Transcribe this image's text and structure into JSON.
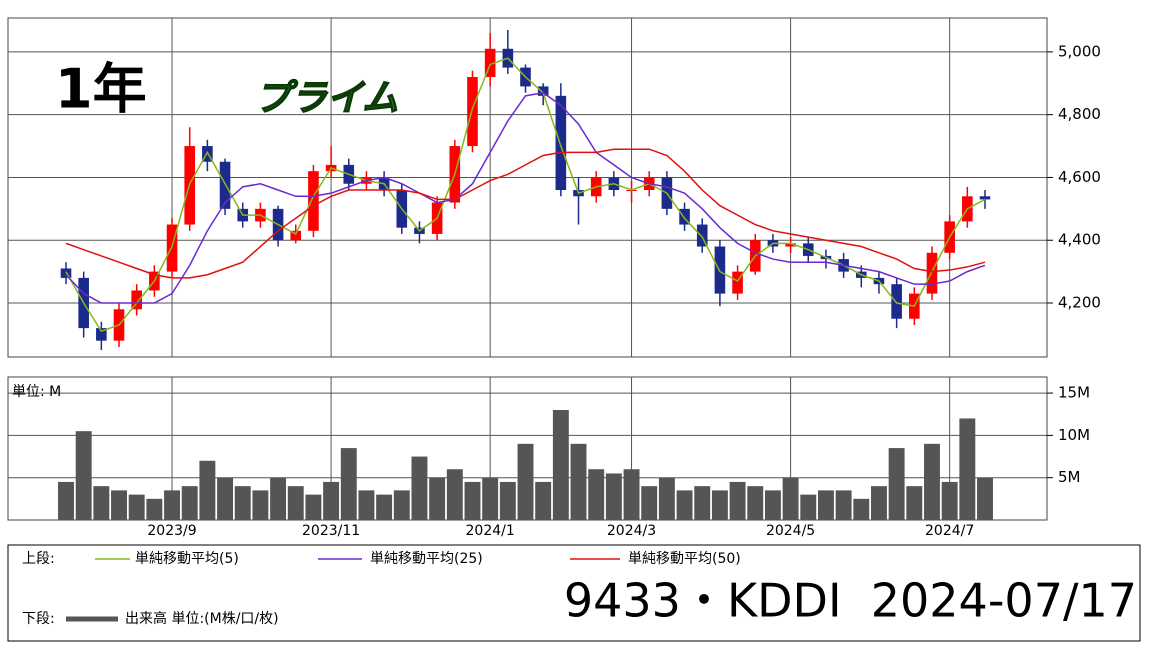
{
  "header": {
    "period": "1年",
    "market": "プライム"
  },
  "chart_data": [
    {
      "type": "candlestick",
      "up_color": "#ff0000",
      "down_color": "#1c2a8c",
      "ylim": [
        4028,
        5108
      ],
      "yticks": [
        {
          "value": 4200,
          "label": "4,200"
        },
        {
          "value": 4400,
          "label": "4,400"
        },
        {
          "value": 4600,
          "label": "4,600"
        },
        {
          "value": 4800,
          "label": "4,800"
        },
        {
          "value": 5000,
          "label": "5,000"
        }
      ],
      "grid": true,
      "legend_prefix": "上段:",
      "open": [
        4310,
        4280,
        4120,
        4080,
        4180,
        4240,
        4300,
        4450,
        4700,
        4650,
        4500,
        4460,
        4500,
        4400,
        4430,
        4620,
        4640,
        4580,
        4600,
        4560,
        4440,
        4420,
        4520,
        4700,
        4920,
        5010,
        4950,
        4890,
        4860,
        4560,
        4540,
        4600,
        4560,
        4560,
        4600,
        4500,
        4450,
        4380,
        4230,
        4300,
        4400,
        4380,
        4390,
        4350,
        4340,
        4300,
        4280,
        4260,
        4150,
        4230,
        4360,
        4460,
        4540
      ],
      "high": [
        4330,
        4300,
        4140,
        4200,
        4260,
        4320,
        4470,
        4760,
        4720,
        4660,
        4520,
        4520,
        4510,
        4450,
        4640,
        4700,
        4660,
        4620,
        4620,
        4580,
        4460,
        4540,
        4720,
        4940,
        5060,
        5070,
        4960,
        4900,
        4900,
        4600,
        4620,
        4620,
        4590,
        4620,
        4620,
        4520,
        4470,
        4400,
        4320,
        4420,
        4420,
        4410,
        4410,
        4370,
        4360,
        4320,
        4300,
        4280,
        4250,
        4380,
        4480,
        4570,
        4560
      ],
      "low": [
        4260,
        4090,
        4050,
        4060,
        4160,
        4220,
        4280,
        4430,
        4620,
        4480,
        4440,
        4440,
        4380,
        4390,
        4410,
        4600,
        4560,
        4560,
        4540,
        4420,
        4390,
        4400,
        4500,
        4680,
        4890,
        4930,
        4870,
        4830,
        4540,
        4450,
        4520,
        4540,
        4520,
        4540,
        4480,
        4430,
        4360,
        4190,
        4210,
        4290,
        4360,
        4360,
        4330,
        4310,
        4280,
        4250,
        4230,
        4120,
        4130,
        4210,
        4340,
        4440,
        4500
      ],
      "close": [
        4280,
        4120,
        4080,
        4180,
        4240,
        4300,
        4450,
        4700,
        4650,
        4500,
        4460,
        4500,
        4400,
        4430,
        4620,
        4640,
        4580,
        4600,
        4560,
        4440,
        4420,
        4520,
        4700,
        4920,
        5010,
        4950,
        4890,
        4860,
        4560,
        4540,
        4600,
        4560,
        4560,
        4600,
        4500,
        4450,
        4380,
        4230,
        4300,
        4400,
        4380,
        4390,
        4350,
        4340,
        4300,
        4280,
        4260,
        4150,
        4230,
        4360,
        4460,
        4540,
        4530
      ],
      "series": [
        {
          "name": "単純移動平均(5)",
          "color": "#86b817",
          "values": [
            4300,
            4200,
            4110,
            4130,
            4200,
            4270,
            4380,
            4580,
            4680,
            4580,
            4480,
            4480,
            4450,
            4420,
            4540,
            4630,
            4610,
            4590,
            4580,
            4500,
            4430,
            4470,
            4610,
            4820,
            4960,
            4980,
            4920,
            4870,
            4700,
            4550,
            4570,
            4580,
            4560,
            4580,
            4550,
            4470,
            4410,
            4300,
            4270,
            4350,
            4390,
            4390,
            4370,
            4345,
            4320,
            4290,
            4270,
            4200,
            4190,
            4300,
            4410,
            4500,
            4530
          ]
        },
        {
          "name": "単純移動平均(25)",
          "color": "#6a2ad0",
          "values": [
            4290,
            4230,
            4200,
            4200,
            4200,
            4200,
            4230,
            4320,
            4430,
            4520,
            4570,
            4580,
            4560,
            4540,
            4540,
            4550,
            4570,
            4590,
            4600,
            4580,
            4550,
            4520,
            4530,
            4580,
            4680,
            4780,
            4860,
            4870,
            4830,
            4770,
            4680,
            4640,
            4600,
            4580,
            4570,
            4550,
            4500,
            4440,
            4390,
            4360,
            4340,
            4330,
            4330,
            4330,
            4320,
            4310,
            4300,
            4280,
            4260,
            4260,
            4270,
            4300,
            4320
          ]
        },
        {
          "name": "単純移動平均(50)",
          "color": "#e01010",
          "values": [
            4390,
            4370,
            4350,
            4330,
            4310,
            4290,
            4280,
            4280,
            4290,
            4310,
            4330,
            4380,
            4430,
            4470,
            4510,
            4540,
            4560,
            4560,
            4560,
            4560,
            4550,
            4530,
            4530,
            4560,
            4590,
            4610,
            4640,
            4670,
            4680,
            4680,
            4680,
            4690,
            4690,
            4690,
            4670,
            4620,
            4560,
            4510,
            4480,
            4450,
            4430,
            4420,
            4410,
            4400,
            4390,
            4380,
            4360,
            4340,
            4310,
            4300,
            4305,
            4315,
            4330
          ]
        }
      ]
    },
    {
      "type": "bar",
      "unit_label": "単位: M",
      "legend_prefix": "下段:",
      "name": "出来高 単位:(M株/口/枚)",
      "color": "#555555",
      "ylim": [
        0,
        16.9
      ],
      "yticks": [
        {
          "value": 5,
          "label": "5M"
        },
        {
          "value": 10,
          "label": "10M"
        },
        {
          "value": 15,
          "label": "15M"
        }
      ],
      "grid": true,
      "categories": [
        null,
        null,
        null,
        null,
        null,
        null,
        "2023/9",
        null,
        null,
        null,
        null,
        null,
        null,
        null,
        null,
        "2023/11",
        null,
        null,
        null,
        null,
        null,
        null,
        null,
        null,
        "2024/1",
        null,
        null,
        null,
        null,
        null,
        null,
        null,
        "2024/3",
        null,
        null,
        null,
        null,
        null,
        null,
        null,
        null,
        "2024/5",
        null,
        null,
        null,
        null,
        null,
        null,
        null,
        null,
        "2024/7",
        null,
        null
      ],
      "values": [
        4.5,
        10.5,
        4,
        3.5,
        3,
        2.5,
        3.5,
        4,
        7,
        5,
        4,
        3.5,
        5,
        4,
        3,
        4.5,
        8.5,
        3.5,
        3,
        3.5,
        7.5,
        5,
        6,
        4.5,
        5,
        4.5,
        9,
        4.5,
        13,
        9,
        6,
        5.5,
        6,
        4,
        5,
        3.5,
        4,
        3.5,
        4.5,
        4,
        3.5,
        5,
        3,
        3.5,
        3.5,
        2.5,
        4,
        8.5,
        4,
        9,
        4.5,
        12,
        5
      ]
    }
  ],
  "footer": {
    "ticker_date": "9433・KDDI  2024-07/17"
  }
}
